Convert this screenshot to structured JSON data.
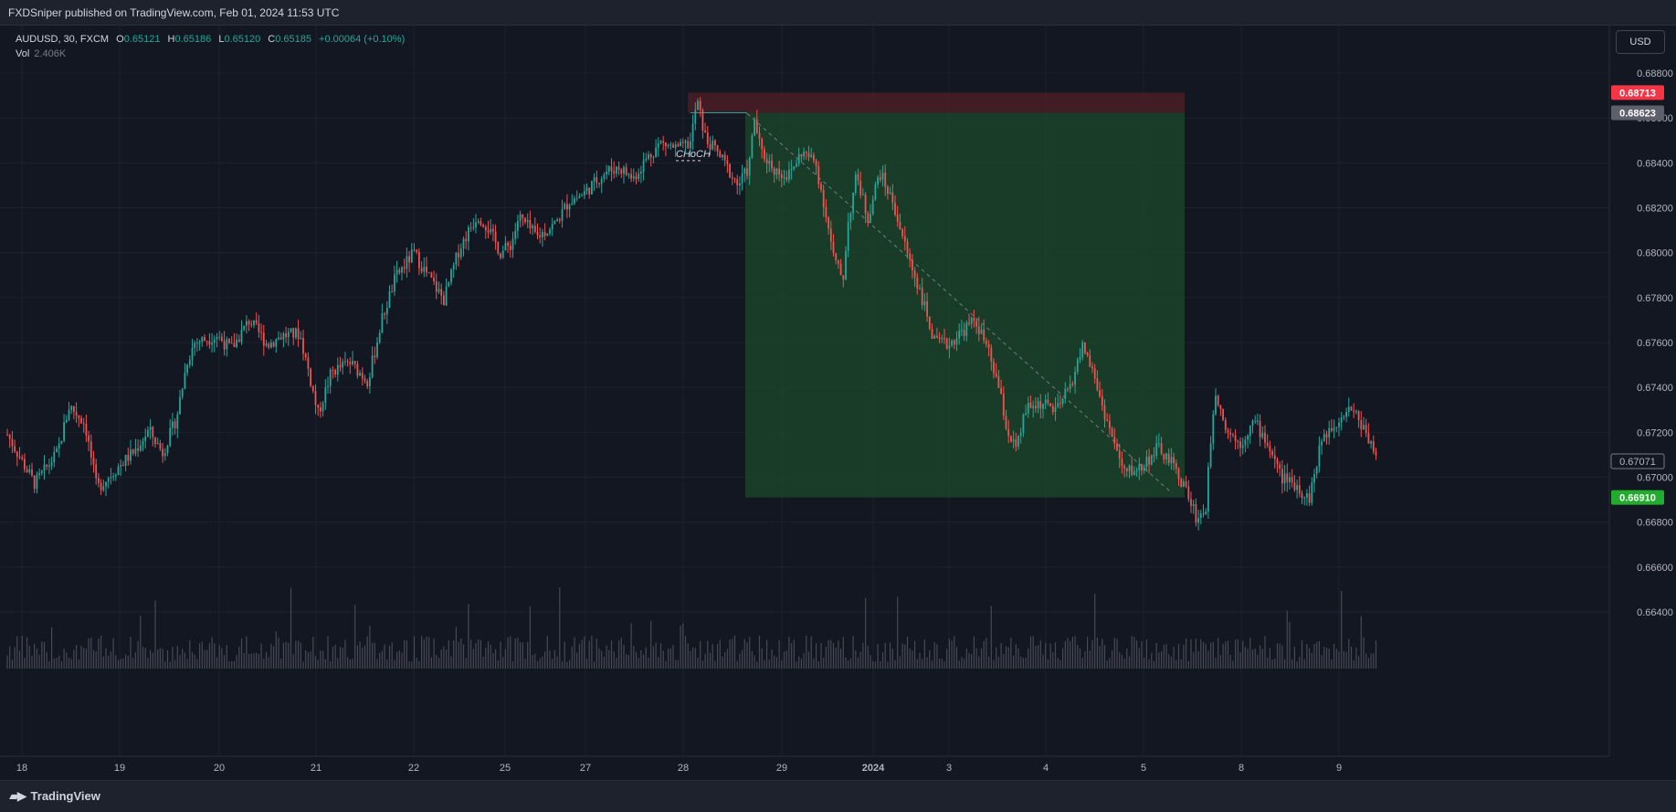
{
  "header": {
    "published": "FXDSniper published on TradingView.com, Feb 01, 2024 11:53 UTC"
  },
  "legend": {
    "symbol": "AUDUSD, 30, FXCM",
    "o_label": "O",
    "o": "0.65121",
    "h_label": "H",
    "h": "0.65186",
    "l_label": "L",
    "l": "0.65120",
    "c_label": "C",
    "c": "0.65185",
    "change": "+0.00064 (+0.10%)",
    "vol_label": "Vol",
    "vol": "2.406K"
  },
  "currency_button": "USD",
  "footer": {
    "brand": "TradingView",
    "logo": "tradingview-logo-icon"
  },
  "colors": {
    "up": "#26a69a",
    "down": "#ef5350",
    "bg": "#131722",
    "grid": "#1e222d",
    "profit_zone": "#1b4a2a",
    "loss_zone": "#4a1d24"
  },
  "chart_data": {
    "type": "candlestick",
    "symbol": "AUDUSD",
    "timeframe": "30",
    "ylim": [
      0.6626,
      0.6893
    ],
    "y_ticks": [
      "0.68800",
      "0.68600",
      "0.68400",
      "0.68200",
      "0.68000",
      "0.67800",
      "0.67600",
      "0.67400",
      "0.67200",
      "0.67000",
      "0.66800",
      "0.66600",
      "0.66400"
    ],
    "x_ticks": [
      "18",
      "19",
      "20",
      "21",
      "22",
      "25",
      "27",
      "28",
      "29",
      "2024",
      "3",
      "4",
      "5",
      "8",
      "9"
    ],
    "price_path": [
      [
        0,
        0.6719
      ],
      [
        30,
        0.6697
      ],
      [
        55,
        0.6711
      ],
      [
        68,
        0.6732
      ],
      [
        85,
        0.6724
      ],
      [
        98,
        0.6695
      ],
      [
        120,
        0.6704
      ],
      [
        140,
        0.6712
      ],
      [
        155,
        0.6721
      ],
      [
        170,
        0.6711
      ],
      [
        185,
        0.6726
      ],
      [
        197,
        0.6752
      ],
      [
        205,
        0.676
      ],
      [
        230,
        0.6763
      ],
      [
        245,
        0.6757
      ],
      [
        265,
        0.677
      ],
      [
        285,
        0.6759
      ],
      [
        300,
        0.6763
      ],
      [
        320,
        0.6764
      ],
      [
        330,
        0.6747
      ],
      [
        340,
        0.6728
      ],
      [
        355,
        0.6747
      ],
      [
        375,
        0.6751
      ],
      [
        395,
        0.6743
      ],
      [
        410,
        0.677
      ],
      [
        425,
        0.6789
      ],
      [
        445,
        0.68
      ],
      [
        460,
        0.679
      ],
      [
        478,
        0.6779
      ],
      [
        495,
        0.6802
      ],
      [
        515,
        0.6817
      ],
      [
        525,
        0.6812
      ],
      [
        540,
        0.68
      ],
      [
        552,
        0.6804
      ],
      [
        560,
        0.6816
      ],
      [
        580,
        0.6807
      ],
      [
        600,
        0.6813
      ],
      [
        615,
        0.6823
      ],
      [
        630,
        0.6826
      ],
      [
        655,
        0.6836
      ],
      [
        670,
        0.6838
      ],
      [
        685,
        0.6833
      ],
      [
        700,
        0.6842
      ],
      [
        715,
        0.6849
      ],
      [
        735,
        0.6846
      ],
      [
        748,
        0.6849
      ],
      [
        755,
        0.6868
      ],
      [
        765,
        0.685
      ],
      [
        775,
        0.6846
      ],
      [
        785,
        0.684
      ],
      [
        800,
        0.683
      ],
      [
        812,
        0.6838
      ],
      [
        818,
        0.686
      ],
      [
        825,
        0.6845
      ],
      [
        840,
        0.6837
      ],
      [
        855,
        0.6834
      ],
      [
        870,
        0.6845
      ],
      [
        885,
        0.684
      ],
      [
        895,
        0.682
      ],
      [
        905,
        0.6797
      ],
      [
        915,
        0.6788
      ],
      [
        920,
        0.6812
      ],
      [
        930,
        0.6835
      ],
      [
        942,
        0.6815
      ],
      [
        955,
        0.6836
      ],
      [
        970,
        0.6822
      ],
      [
        985,
        0.68
      ],
      [
        1000,
        0.6782
      ],
      [
        1015,
        0.676
      ],
      [
        1030,
        0.6759
      ],
      [
        1045,
        0.6765
      ],
      [
        1060,
        0.677
      ],
      [
        1072,
        0.6758
      ],
      [
        1085,
        0.6741
      ],
      [
        1095,
        0.672
      ],
      [
        1105,
        0.6712
      ],
      [
        1115,
        0.673
      ],
      [
        1130,
        0.6733
      ],
      [
        1150,
        0.673
      ],
      [
        1165,
        0.6742
      ],
      [
        1178,
        0.6759
      ],
      [
        1190,
        0.6745
      ],
      [
        1200,
        0.673
      ],
      [
        1212,
        0.6715
      ],
      [
        1222,
        0.6702
      ],
      [
        1240,
        0.6704
      ],
      [
        1260,
        0.6713
      ],
      [
        1275,
        0.6706
      ],
      [
        1290,
        0.6695
      ],
      [
        1303,
        0.6681
      ],
      [
        1312,
        0.6686
      ],
      [
        1322,
        0.674
      ],
      [
        1335,
        0.6721
      ],
      [
        1350,
        0.6715
      ],
      [
        1365,
        0.6725
      ],
      [
        1380,
        0.6715
      ],
      [
        1395,
        0.67
      ],
      [
        1410,
        0.6697
      ],
      [
        1425,
        0.669
      ],
      [
        1440,
        0.6718
      ],
      [
        1455,
        0.6725
      ],
      [
        1470,
        0.6732
      ],
      [
        1485,
        0.6722
      ],
      [
        1500,
        0.671
      ],
      [
        1508,
        0.6707
      ]
    ],
    "volume_k_min_max": [
      0.5,
      6.0
    ],
    "position": {
      "entry": 0.68623,
      "stop": 0.68713,
      "target": 0.6691,
      "entry_label": "0.68623",
      "stop_label": "0.68713",
      "target_label": "0.66910"
    },
    "current_price_label": "0.67071",
    "annotation": "CHoCH"
  }
}
